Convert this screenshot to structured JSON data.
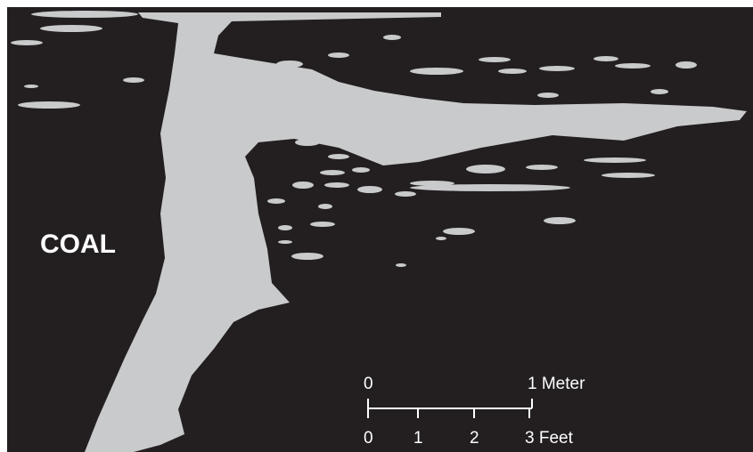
{
  "label": "COAL",
  "scale_bar": {
    "meter_labels": [
      "0",
      "1 Meter"
    ],
    "feet_labels": [
      "0",
      "1",
      "2",
      "3 Feet"
    ]
  }
}
